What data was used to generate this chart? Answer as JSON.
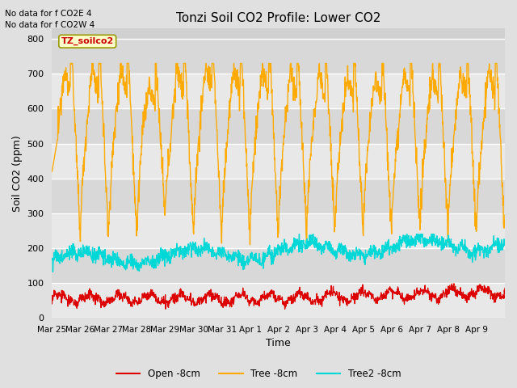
{
  "title": "Tonzi Soil CO2 Profile: Lower CO2",
  "xlabel": "Time",
  "ylabel": "Soil CO2 (ppm)",
  "ylim": [
    0,
    830
  ],
  "yticks": [
    0,
    100,
    200,
    300,
    400,
    500,
    600,
    700,
    800
  ],
  "annotation_line1": "No data for f CO2E 4",
  "annotation_line2": "No data for f CO2W 4",
  "legend_box_label": "TZ_soilco2",
  "legend_entries": [
    "Open -8cm",
    "Tree -8cm",
    "Tree2 -8cm"
  ],
  "line_colors": [
    "#dd0000",
    "#ffaa00",
    "#00d8d8"
  ],
  "fig_bg_color": "#e0e0e0",
  "plot_bg_color": "#d0d0d0",
  "grid_color": "#f0f0f0",
  "xtick_labels": [
    "Mar 25",
    "Mar 26",
    "Mar 27",
    "Mar 28",
    "Mar 29",
    "Mar 30",
    "Mar 31",
    "Apr 1",
    "Apr 2",
    "Apr 3",
    "Apr 4",
    "Apr 5",
    "Apr 6",
    "Apr 7",
    "Apr 8",
    "Apr 9"
  ],
  "xtick_positions": [
    0,
    1,
    2,
    3,
    4,
    5,
    6,
    7,
    8,
    9,
    10,
    11,
    12,
    13,
    14,
    15
  ]
}
